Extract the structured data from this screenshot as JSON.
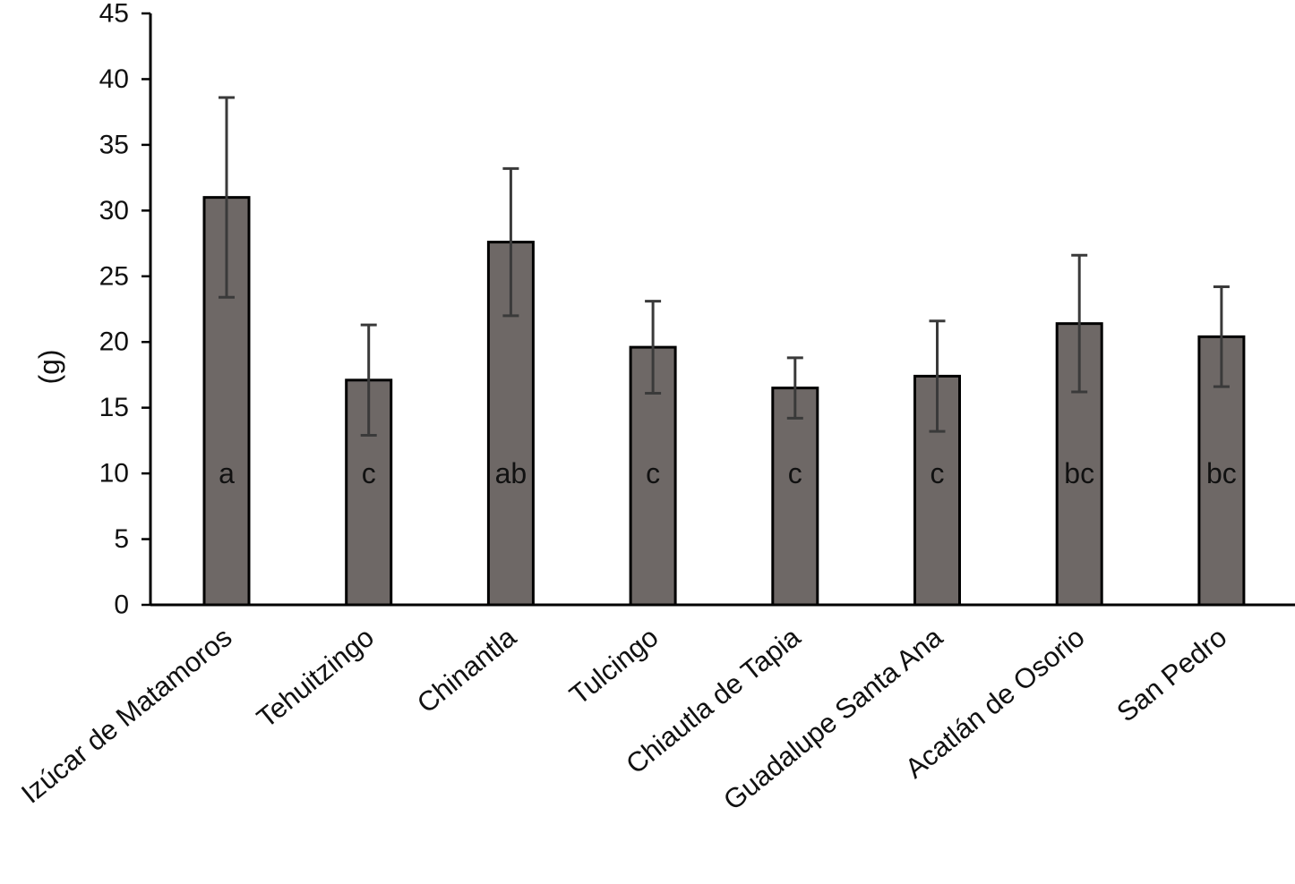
{
  "chart_data": {
    "type": "bar",
    "title": "",
    "xlabel": "",
    "ylabel": "(g)",
    "ylim": [
      0,
      45
    ],
    "yticks": [
      0,
      5,
      10,
      15,
      20,
      25,
      30,
      35,
      40,
      45
    ],
    "grid": false,
    "categories": [
      "Izúcar de Matamoros",
      "Tehuitzingo",
      "Chinantla",
      "Tulcingo",
      "Chiautla de Tapia",
      "Guadalupe  Santa Ana",
      "Acatlán de Osorio",
      "San Pedro"
    ],
    "values": [
      31.0,
      17.1,
      27.6,
      19.6,
      16.5,
      17.4,
      21.4,
      20.4
    ],
    "errors": [
      7.6,
      4.2,
      5.6,
      3.5,
      2.3,
      4.2,
      5.2,
      3.8
    ],
    "significance_letters": [
      "a",
      "c",
      "ab",
      "c",
      "c",
      "c",
      "bc",
      "bc"
    ],
    "colors": {
      "bar_fill": "#6e6866",
      "bar_stroke": "#000000",
      "error_bar": "#3a3a3a",
      "axis": "#000000"
    }
  }
}
